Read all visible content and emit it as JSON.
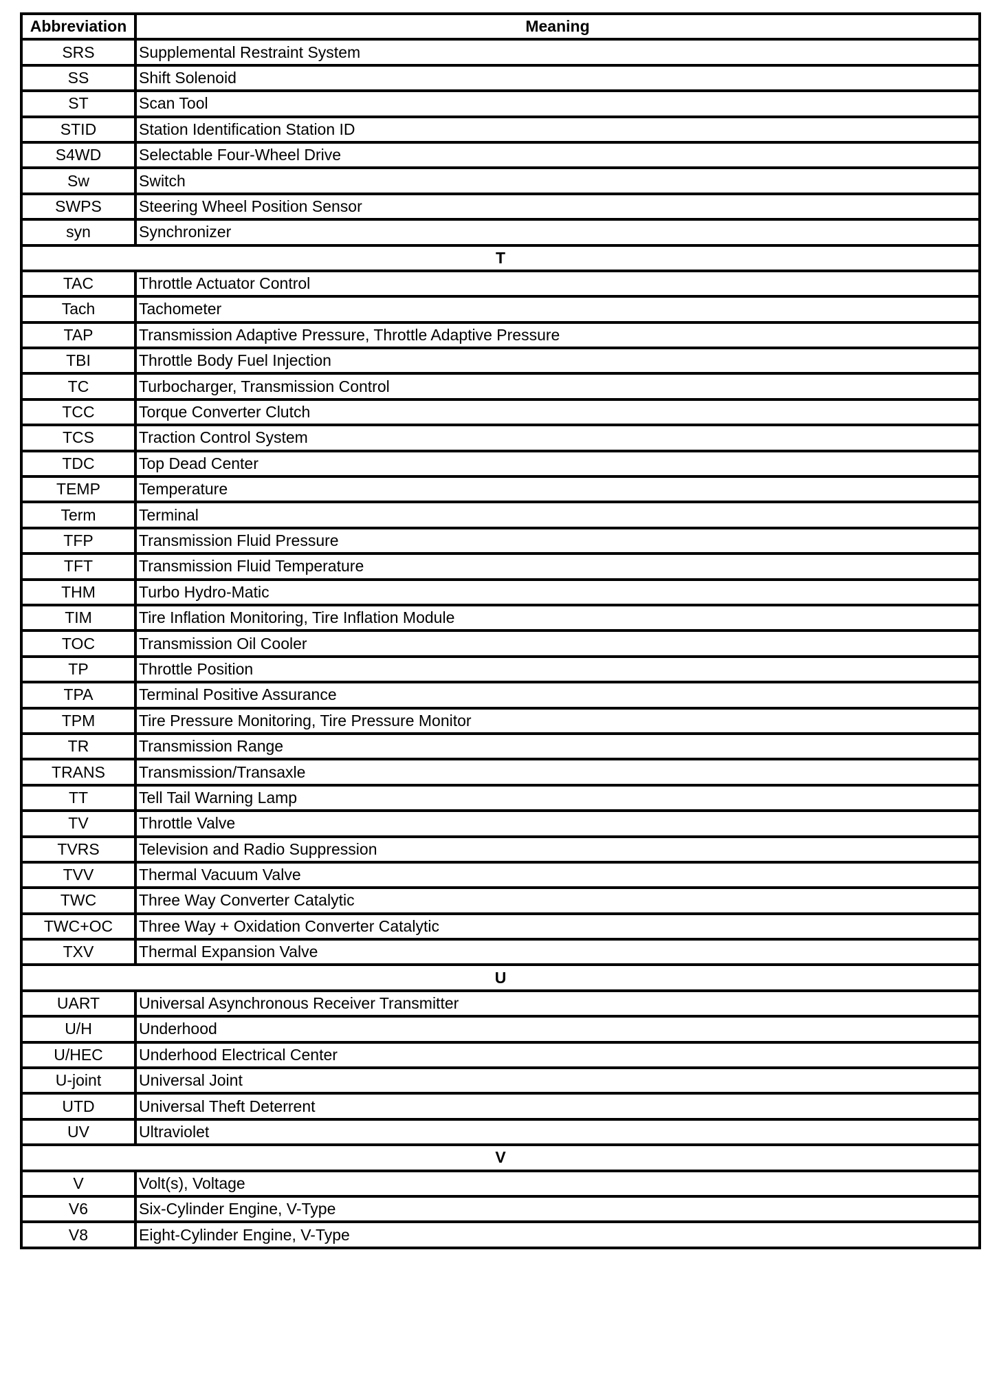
{
  "header": {
    "abbreviation": "Abbreviation",
    "meaning": "Meaning"
  },
  "rows": [
    {
      "abbr": "SRS",
      "meaning": "Supplemental Restraint System"
    },
    {
      "abbr": "SS",
      "meaning": "Shift Solenoid"
    },
    {
      "abbr": "ST",
      "meaning": "Scan Tool"
    },
    {
      "abbr": "STID",
      "meaning": "Station Identification Station ID"
    },
    {
      "abbr": "S4WD",
      "meaning": "Selectable Four-Wheel Drive"
    },
    {
      "abbr": "Sw",
      "meaning": "Switch"
    },
    {
      "abbr": "SWPS",
      "meaning": "Steering Wheel Position Sensor"
    },
    {
      "abbr": "syn",
      "meaning": "Synchronizer"
    },
    {
      "section": "T"
    },
    {
      "abbr": "TAC",
      "meaning": "Throttle Actuator Control"
    },
    {
      "abbr": "Tach",
      "meaning": "Tachometer"
    },
    {
      "abbr": "TAP",
      "meaning": "Transmission Adaptive Pressure, Throttle Adaptive Pressure"
    },
    {
      "abbr": "TBI",
      "meaning": "Throttle Body Fuel Injection"
    },
    {
      "abbr": "TC",
      "meaning": "Turbocharger, Transmission Control"
    },
    {
      "abbr": "TCC",
      "meaning": "Torque Converter Clutch"
    },
    {
      "abbr": "TCS",
      "meaning": "Traction Control System"
    },
    {
      "abbr": "TDC",
      "meaning": "Top Dead Center"
    },
    {
      "abbr": "TEMP",
      "meaning": "Temperature"
    },
    {
      "abbr": "Term",
      "meaning": "Terminal"
    },
    {
      "abbr": "TFP",
      "meaning": "Transmission Fluid Pressure"
    },
    {
      "abbr": "TFT",
      "meaning": "Transmission Fluid Temperature"
    },
    {
      "abbr": "THM",
      "meaning": "Turbo Hydro-Matic"
    },
    {
      "abbr": "TIM",
      "meaning": "Tire Inflation Monitoring, Tire Inflation Module"
    },
    {
      "abbr": "TOC",
      "meaning": "Transmission Oil Cooler"
    },
    {
      "abbr": "TP",
      "meaning": "Throttle Position"
    },
    {
      "abbr": "TPA",
      "meaning": "Terminal Positive Assurance"
    },
    {
      "abbr": "TPM",
      "meaning": "Tire Pressure Monitoring, Tire Pressure Monitor"
    },
    {
      "abbr": "TR",
      "meaning": "Transmission Range"
    },
    {
      "abbr": "TRANS",
      "meaning": "Transmission/Transaxle"
    },
    {
      "abbr": "TT",
      "meaning": "Tell Tail Warning Lamp"
    },
    {
      "abbr": "TV",
      "meaning": "Throttle Valve"
    },
    {
      "abbr": "TVRS",
      "meaning": "Television and Radio Suppression"
    },
    {
      "abbr": "TVV",
      "meaning": "Thermal Vacuum Valve"
    },
    {
      "abbr": "TWC",
      "meaning": "Three Way Converter Catalytic"
    },
    {
      "abbr": "TWC+OC",
      "meaning": "Three Way + Oxidation Converter Catalytic"
    },
    {
      "abbr": "TXV",
      "meaning": "Thermal Expansion Valve"
    },
    {
      "section": "U"
    },
    {
      "abbr": "UART",
      "meaning": "Universal Asynchronous Receiver Transmitter"
    },
    {
      "abbr": "U/H",
      "meaning": "Underhood"
    },
    {
      "abbr": "U/HEC",
      "meaning": "Underhood Electrical Center"
    },
    {
      "abbr": "U-joint",
      "meaning": "Universal Joint"
    },
    {
      "abbr": "UTD",
      "meaning": "Universal Theft Deterrent"
    },
    {
      "abbr": "UV",
      "meaning": "Ultraviolet"
    },
    {
      "section": "V"
    },
    {
      "abbr": "V",
      "meaning": "Volt(s), Voltage"
    },
    {
      "abbr": "V6",
      "meaning": "Six-Cylinder Engine, V-Type"
    },
    {
      "abbr": "V8",
      "meaning": "Eight-Cylinder Engine, V-Type"
    }
  ]
}
